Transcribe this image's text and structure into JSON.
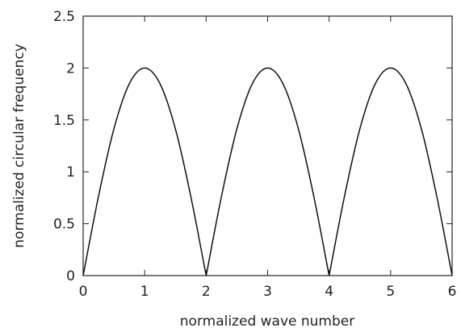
{
  "chart_data": {
    "type": "line",
    "title": "",
    "xlabel": "normalized wave number",
    "ylabel": "normalized circular frequency",
    "xlim": [
      0,
      6
    ],
    "ylim": [
      0,
      2.5
    ],
    "xticks": [
      0,
      1,
      2,
      3,
      4,
      5,
      6
    ],
    "xtick_labels": [
      "0",
      "1",
      "2",
      "3",
      "4",
      "5",
      "6"
    ],
    "yticks": [
      0,
      0.5,
      1,
      1.5,
      2,
      2.5
    ],
    "ytick_labels": [
      "0",
      "0.5",
      "1",
      "1.5",
      "2",
      "2.5"
    ],
    "grid": false,
    "legend": "none",
    "series": [
      {
        "x": [
          0,
          0.25,
          0.5,
          0.75,
          1,
          1.25,
          1.5,
          1.75,
          2,
          2.25,
          2.5,
          2.75,
          3,
          3.25,
          3.5,
          3.75,
          4,
          4.25,
          4.5,
          4.75,
          5,
          5.25,
          5.5,
          5.75,
          6
        ],
        "y": [
          0,
          0.765,
          1.414,
          1.848,
          2,
          1.848,
          1.414,
          0.765,
          0,
          0.765,
          1.414,
          1.848,
          2,
          1.848,
          1.414,
          0.765,
          0,
          0.765,
          1.414,
          1.848,
          2,
          1.848,
          1.414,
          0.765,
          0
        ],
        "color": "#111111"
      }
    ]
  }
}
